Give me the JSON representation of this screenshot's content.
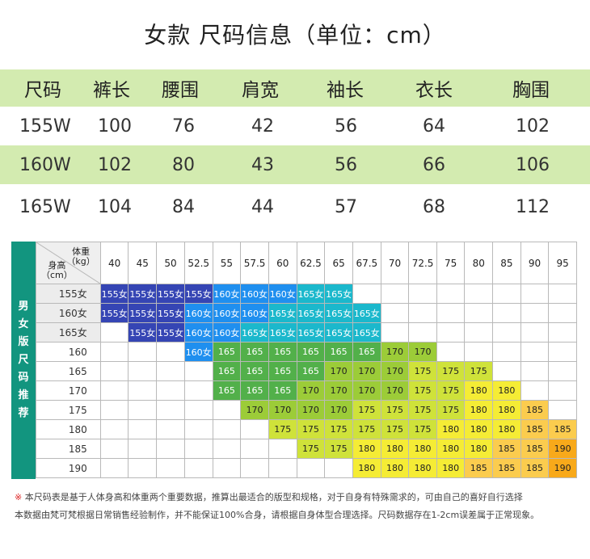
{
  "title": "女款 尺码信息（单位：cm）",
  "size_table": {
    "headers": [
      "尺码",
      "裤长",
      "腰围",
      "肩宽",
      "袖长",
      "衣长",
      "胸围"
    ],
    "rows": [
      [
        "155W",
        "100",
        "76",
        "42",
        "56",
        "64",
        "102"
      ],
      [
        "160W",
        "102",
        "80",
        "43",
        "56",
        "66",
        "106"
      ],
      [
        "165W",
        "104",
        "84",
        "44",
        "57",
        "68",
        "112"
      ]
    ]
  },
  "grid": {
    "side_label": [
      "男",
      "女",
      "版",
      "尺",
      "码",
      "推",
      "荐"
    ],
    "corner_weight": "体重",
    "corner_weight_unit": "（kg）",
    "corner_height": "身高",
    "corner_height_unit": "（cm）",
    "weights": [
      "40",
      "45",
      "50",
      "52.5",
      "55",
      "57.5",
      "60",
      "62.5",
      "65",
      "67.5",
      "70",
      "72.5",
      "75",
      "80",
      "85",
      "90",
      "95"
    ],
    "rows": [
      {
        "height": "155女",
        "shaded": true,
        "cells": [
          "155女",
          "155女",
          "155女",
          "155女",
          "160女",
          "160女",
          "160女",
          "165女",
          "165女",
          "",
          "",
          "",
          "",
          "",
          "",
          "",
          ""
        ]
      },
      {
        "height": "160女",
        "shaded": true,
        "cells": [
          "155女",
          "155女",
          "155女",
          "160女",
          "160女",
          "160女",
          "165女",
          "165女",
          "165女",
          "165女",
          "",
          "",
          "",
          "",
          "",
          "",
          ""
        ]
      },
      {
        "height": "165女",
        "shaded": true,
        "cells": [
          "",
          "155女",
          "155女",
          "160女",
          "160女",
          "165女",
          "165女",
          "165女",
          "165女",
          "165女",
          "",
          "",
          "",
          "",
          "",
          "",
          ""
        ]
      },
      {
        "height": "160",
        "shaded": false,
        "cells": [
          "",
          "",
          "",
          "160女",
          "165",
          "165",
          "165",
          "165",
          "165",
          "165",
          "170",
          "170",
          "",
          "",
          "",
          "",
          ""
        ]
      },
      {
        "height": "165",
        "shaded": false,
        "cells": [
          "",
          "",
          "",
          "",
          "165",
          "165",
          "165",
          "165",
          "170",
          "170",
          "170",
          "175",
          "175",
          "175",
          "",
          "",
          ""
        ]
      },
      {
        "height": "170",
        "shaded": false,
        "cells": [
          "",
          "",
          "",
          "",
          "165",
          "165",
          "165",
          "170",
          "170",
          "170",
          "170",
          "175",
          "175",
          "180",
          "180",
          "",
          ""
        ]
      },
      {
        "height": "175",
        "shaded": false,
        "cells": [
          "",
          "",
          "",
          "",
          "",
          "170",
          "170",
          "170",
          "170",
          "175",
          "175",
          "175",
          "175",
          "180",
          "180",
          "185",
          ""
        ]
      },
      {
        "height": "180",
        "shaded": false,
        "cells": [
          "",
          "",
          "",
          "",
          "",
          "",
          "175",
          "175",
          "175",
          "175",
          "175",
          "175",
          "180",
          "180",
          "180",
          "185",
          "185"
        ]
      },
      {
        "height": "185",
        "shaded": false,
        "cells": [
          "",
          "",
          "",
          "",
          "",
          "",
          "",
          "175",
          "175",
          "180",
          "180",
          "180",
          "180",
          "180",
          "185",
          "185",
          "190"
        ]
      },
      {
        "height": "190",
        "shaded": false,
        "cells": [
          "",
          "",
          "",
          "",
          "",
          "",
          "",
          "",
          "",
          "180",
          "180",
          "180",
          "180",
          "185",
          "185",
          "185",
          "190"
        ]
      }
    ],
    "colors": {
      "155女": "#3545b4",
      "160女": "#1f8fef",
      "165女": "#1bb8cc",
      "165": "#52b04a",
      "170": "#9ccc38",
      "175": "#cfe23a",
      "180": "#f5ec35",
      "185": "#fbcc4e",
      "190": "#f8a91a",
      "side": "#12957f",
      "header_green": "#d3ebb0"
    }
  },
  "notes": {
    "mark": "※",
    "line1": "本尺码表是基于人体身高和体重两个重要数据，推算出最适合的版型和规格，对于自身有特殊需求的，可由自己的喜好自行选择",
    "line2": "本数据由梵可梵根据日常销售经验制作，并不能保证100%合身，请根据自身体型合理选择。尺码数据存在1-2cm误差属于正常现象。"
  }
}
